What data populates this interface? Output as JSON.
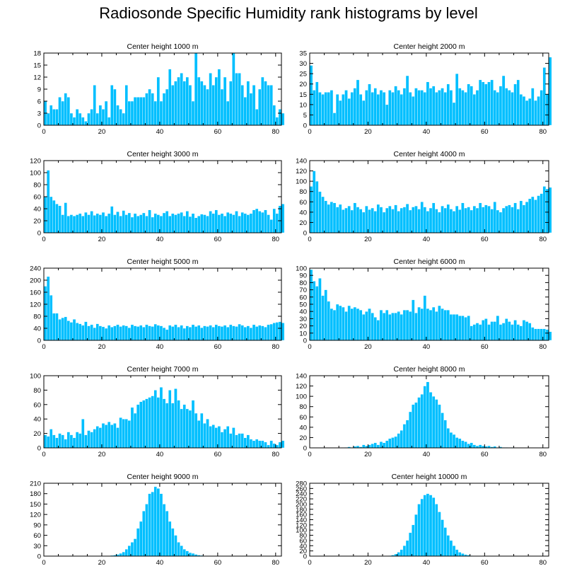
{
  "title": "Radiosonde Specific Humidity rank histograms by level",
  "colors": {
    "bar": "#00bfff",
    "bar_edge": "#ffffff",
    "axis": "#000000"
  },
  "chart_data": [
    {
      "type": "bar",
      "title": "Center height 1000 m",
      "xlim": [
        0,
        82
      ],
      "ylim": [
        0,
        18
      ],
      "xticks": [
        0,
        20,
        40,
        60,
        80
      ],
      "yticks": [
        0,
        3,
        6,
        9,
        12,
        15,
        18
      ],
      "values": [
        6,
        3,
        5,
        4,
        4,
        7,
        6,
        8,
        7,
        3,
        2,
        4,
        3,
        2,
        1,
        3,
        4,
        10,
        3,
        5,
        4,
        6,
        2,
        10,
        9,
        5,
        4,
        3,
        10,
        6,
        6,
        7,
        7,
        7,
        7,
        8,
        9,
        8,
        6,
        12,
        6,
        8,
        9,
        14,
        10,
        11,
        12,
        13,
        11,
        12,
        10,
        6,
        18,
        12,
        11,
        10,
        9,
        13,
        10,
        12,
        14,
        9,
        12,
        6,
        11,
        18,
        13,
        13,
        10,
        7,
        11,
        8,
        10,
        4,
        9,
        12,
        11,
        10,
        10,
        5,
        2,
        4,
        3
      ],
      "xlabel": "",
      "ylabel": ""
    },
    {
      "type": "bar",
      "title": "Center height 2000 m",
      "xlim": [
        0,
        82
      ],
      "ylim": [
        0,
        35
      ],
      "xticks": [
        0,
        20,
        40,
        60,
        80
      ],
      "yticks": [
        0,
        5,
        10,
        15,
        20,
        25,
        30,
        35
      ],
      "values": [
        29,
        17,
        21,
        16,
        15,
        16,
        16,
        17,
        6,
        15,
        12,
        15,
        17,
        13,
        16,
        18,
        22,
        15,
        12,
        17,
        20,
        16,
        18,
        15,
        17,
        16,
        10,
        17,
        16,
        19,
        17,
        15,
        18,
        24,
        16,
        14,
        18,
        17,
        17,
        16,
        21,
        18,
        19,
        16,
        17,
        18,
        16,
        20,
        17,
        11,
        25,
        18,
        17,
        16,
        20,
        19,
        15,
        17,
        22,
        21,
        20,
        21,
        22,
        17,
        16,
        19,
        24,
        18,
        17,
        16,
        20,
        22,
        15,
        14,
        12,
        13,
        18,
        12,
        14,
        17,
        28,
        15,
        33
      ],
      "xlabel": "",
      "ylabel": ""
    },
    {
      "type": "bar",
      "title": "Center height 3000 m",
      "xlim": [
        0,
        82
      ],
      "ylim": [
        0,
        120
      ],
      "xticks": [
        0,
        20,
        40,
        60,
        80
      ],
      "yticks": [
        0,
        20,
        40,
        60,
        80,
        100,
        120
      ],
      "values": [
        60,
        104,
        60,
        54,
        48,
        45,
        30,
        50,
        28,
        30,
        28,
        30,
        32,
        28,
        34,
        30,
        36,
        29,
        32,
        30,
        34,
        28,
        32,
        44,
        30,
        35,
        28,
        37,
        30,
        33,
        26,
        32,
        28,
        30,
        33,
        28,
        38,
        26,
        32,
        30,
        28,
        33,
        36,
        28,
        32,
        30,
        32,
        34,
        28,
        36,
        27,
        32,
        25,
        28,
        31,
        30,
        28,
        36,
        32,
        38,
        30,
        32,
        28,
        34,
        32,
        30,
        36,
        28,
        34,
        32,
        30,
        32,
        38,
        40,
        36,
        34,
        38,
        30,
        22,
        40,
        32,
        45,
        48
      ],
      "xlabel": "",
      "ylabel": ""
    },
    {
      "type": "bar",
      "title": "Center height 4000 m",
      "xlim": [
        0,
        82
      ],
      "ylim": [
        0,
        140
      ],
      "xticks": [
        0,
        20,
        40,
        60,
        80
      ],
      "yticks": [
        0,
        20,
        40,
        60,
        80,
        100,
        120,
        140
      ],
      "values": [
        90,
        120,
        100,
        80,
        70,
        62,
        55,
        60,
        58,
        50,
        55,
        45,
        48,
        52,
        44,
        58,
        50,
        46,
        40,
        52,
        45,
        48,
        42,
        55,
        50,
        40,
        48,
        52,
        46,
        54,
        42,
        48,
        50,
        56,
        44,
        50,
        52,
        46,
        60,
        50,
        42,
        48,
        58,
        46,
        40,
        52,
        48,
        55,
        46,
        42,
        52,
        45,
        58,
        48,
        50,
        44,
        52,
        48,
        58,
        50,
        54,
        52,
        46,
        60,
        44,
        40,
        48,
        52,
        54,
        50,
        58,
        46,
        62,
        54,
        60,
        66,
        70,
        64,
        72,
        76,
        90,
        85,
        88
      ],
      "xlabel": "",
      "ylabel": ""
    },
    {
      "type": "bar",
      "title": "Center height 5000 m",
      "xlim": [
        0,
        82
      ],
      "ylim": [
        0,
        240
      ],
      "xticks": [
        0,
        20,
        40,
        60,
        80
      ],
      "yticks": [
        0,
        40,
        80,
        120,
        160,
        200,
        240
      ],
      "values": [
        180,
        212,
        150,
        90,
        90,
        70,
        75,
        78,
        65,
        60,
        70,
        58,
        55,
        50,
        62,
        48,
        52,
        42,
        55,
        48,
        45,
        40,
        50,
        44,
        48,
        52,
        46,
        50,
        48,
        42,
        52,
        48,
        46,
        50,
        44,
        52,
        48,
        46,
        54,
        50,
        48,
        42,
        36,
        50,
        46,
        52,
        44,
        50,
        40,
        48,
        44,
        52,
        46,
        50,
        42,
        48,
        46,
        50,
        44,
        52,
        48,
        46,
        50,
        44,
        52,
        48,
        46,
        54,
        50,
        44,
        48,
        42,
        52,
        46,
        50,
        48,
        44,
        52,
        54,
        58,
        60,
        62,
        58
      ],
      "xlabel": "",
      "ylabel": ""
    },
    {
      "type": "bar",
      "title": "Center height 6000 m",
      "xlim": [
        0,
        82
      ],
      "ylim": [
        0,
        100
      ],
      "xticks": [
        0,
        20,
        40,
        60,
        80
      ],
      "yticks": [
        0,
        10,
        20,
        30,
        40,
        50,
        60,
        70,
        80,
        90,
        100
      ],
      "values": [
        98,
        82,
        75,
        86,
        62,
        70,
        54,
        44,
        42,
        50,
        48,
        46,
        40,
        48,
        44,
        46,
        44,
        42,
        36,
        40,
        44,
        38,
        32,
        28,
        42,
        38,
        42,
        36,
        38,
        38,
        40,
        36,
        42,
        42,
        40,
        56,
        38,
        46,
        44,
        62,
        44,
        42,
        46,
        40,
        48,
        44,
        42,
        42,
        36,
        36,
        36,
        34,
        34,
        32,
        34,
        20,
        22,
        24,
        22,
        28,
        30,
        22,
        26,
        26,
        34,
        22,
        24,
        30,
        26,
        22,
        28,
        22,
        20,
        28,
        26,
        24,
        18,
        16,
        16,
        16,
        16,
        15,
        12
      ],
      "xlabel": "",
      "ylabel": ""
    },
    {
      "type": "bar",
      "title": "Center height 7000 m",
      "xlim": [
        0,
        82
      ],
      "ylim": [
        0,
        100
      ],
      "xticks": [
        0,
        20,
        40,
        60,
        80
      ],
      "yticks": [
        0,
        20,
        40,
        60,
        80,
        100
      ],
      "values": [
        18,
        16,
        26,
        18,
        14,
        20,
        18,
        12,
        22,
        18,
        14,
        22,
        20,
        40,
        18,
        24,
        22,
        26,
        30,
        28,
        34,
        32,
        36,
        32,
        34,
        28,
        42,
        40,
        40,
        38,
        56,
        48,
        60,
        64,
        66,
        68,
        70,
        72,
        80,
        70,
        84,
        68,
        62,
        80,
        62,
        82,
        66,
        54,
        60,
        54,
        52,
        66,
        48,
        38,
        48,
        34,
        40,
        30,
        32,
        28,
        30,
        22,
        26,
        30,
        20,
        28,
        18,
        20,
        20,
        14,
        18,
        12,
        10,
        12,
        10,
        10,
        8,
        4,
        10,
        6,
        4,
        8,
        10
      ],
      "xlabel": "",
      "ylabel": ""
    },
    {
      "type": "bar",
      "title": "Center height 8000 m",
      "xlim": [
        0,
        82
      ],
      "ylim": [
        0,
        140
      ],
      "xticks": [
        0,
        20,
        40,
        60,
        80
      ],
      "yticks": [
        0,
        20,
        40,
        60,
        80,
        100,
        120,
        140
      ],
      "values": [
        0,
        0,
        0,
        0,
        0,
        0,
        0,
        0,
        0,
        0,
        0,
        0,
        1,
        2,
        1,
        3,
        4,
        2,
        6,
        4,
        6,
        8,
        10,
        6,
        12,
        10,
        14,
        18,
        20,
        22,
        28,
        34,
        46,
        54,
        70,
        84,
        88,
        98,
        104,
        120,
        128,
        108,
        100,
        94,
        84,
        68,
        54,
        38,
        30,
        26,
        20,
        18,
        14,
        12,
        8,
        10,
        6,
        4,
        6,
        4,
        3,
        4,
        2,
        3,
        1,
        2,
        1,
        1,
        0,
        1,
        0,
        0,
        0,
        0,
        0,
        0,
        0,
        0,
        0,
        0,
        0,
        0,
        0
      ],
      "xlabel": "",
      "ylabel": ""
    },
    {
      "type": "bar",
      "title": "Center height 9000 m",
      "xlim": [
        0,
        82
      ],
      "ylim": [
        0,
        210
      ],
      "xticks": [
        0,
        20,
        40,
        60,
        80
      ],
      "yticks": [
        0,
        30,
        60,
        90,
        120,
        150,
        180,
        210
      ],
      "values": [
        0,
        0,
        0,
        0,
        0,
        0,
        0,
        0,
        0,
        0,
        0,
        0,
        0,
        0,
        0,
        0,
        0,
        0,
        0,
        0,
        0,
        0,
        1,
        2,
        3,
        5,
        8,
        12,
        20,
        30,
        40,
        50,
        80,
        100,
        130,
        150,
        180,
        185,
        200,
        195,
        180,
        150,
        130,
        100,
        80,
        60,
        40,
        30,
        20,
        15,
        10,
        8,
        5,
        3,
        2,
        1,
        1,
        0,
        0,
        0,
        0,
        0,
        0,
        0,
        0,
        0,
        0,
        0,
        0,
        0,
        0,
        0,
        0,
        0,
        0,
        0,
        0,
        0,
        0,
        0,
        0,
        0,
        0
      ],
      "xlabel": "",
      "ylabel": ""
    },
    {
      "type": "bar",
      "title": "Center height 10000 m",
      "xlim": [
        0,
        82
      ],
      "ylim": [
        0,
        280
      ],
      "xticks": [
        0,
        20,
        40,
        60,
        80
      ],
      "yticks": [
        0,
        20,
        40,
        60,
        80,
        100,
        120,
        140,
        160,
        180,
        200,
        220,
        240,
        260,
        280
      ],
      "values": [
        0,
        0,
        0,
        0,
        0,
        0,
        0,
        0,
        0,
        0,
        0,
        0,
        0,
        0,
        0,
        0,
        0,
        0,
        0,
        0,
        0,
        0,
        0,
        0,
        0,
        0,
        1,
        2,
        4,
        8,
        15,
        25,
        40,
        60,
        90,
        120,
        160,
        200,
        220,
        235,
        240,
        235,
        225,
        200,
        170,
        140,
        110,
        80,
        60,
        40,
        25,
        15,
        10,
        6,
        4,
        2,
        1,
        0,
        0,
        0,
        0,
        0,
        0,
        0,
        0,
        0,
        0,
        0,
        0,
        0,
        0,
        0,
        0,
        0,
        0,
        0,
        0,
        0,
        0,
        0,
        0,
        0,
        0
      ],
      "xlabel": "",
      "ylabel": ""
    }
  ]
}
